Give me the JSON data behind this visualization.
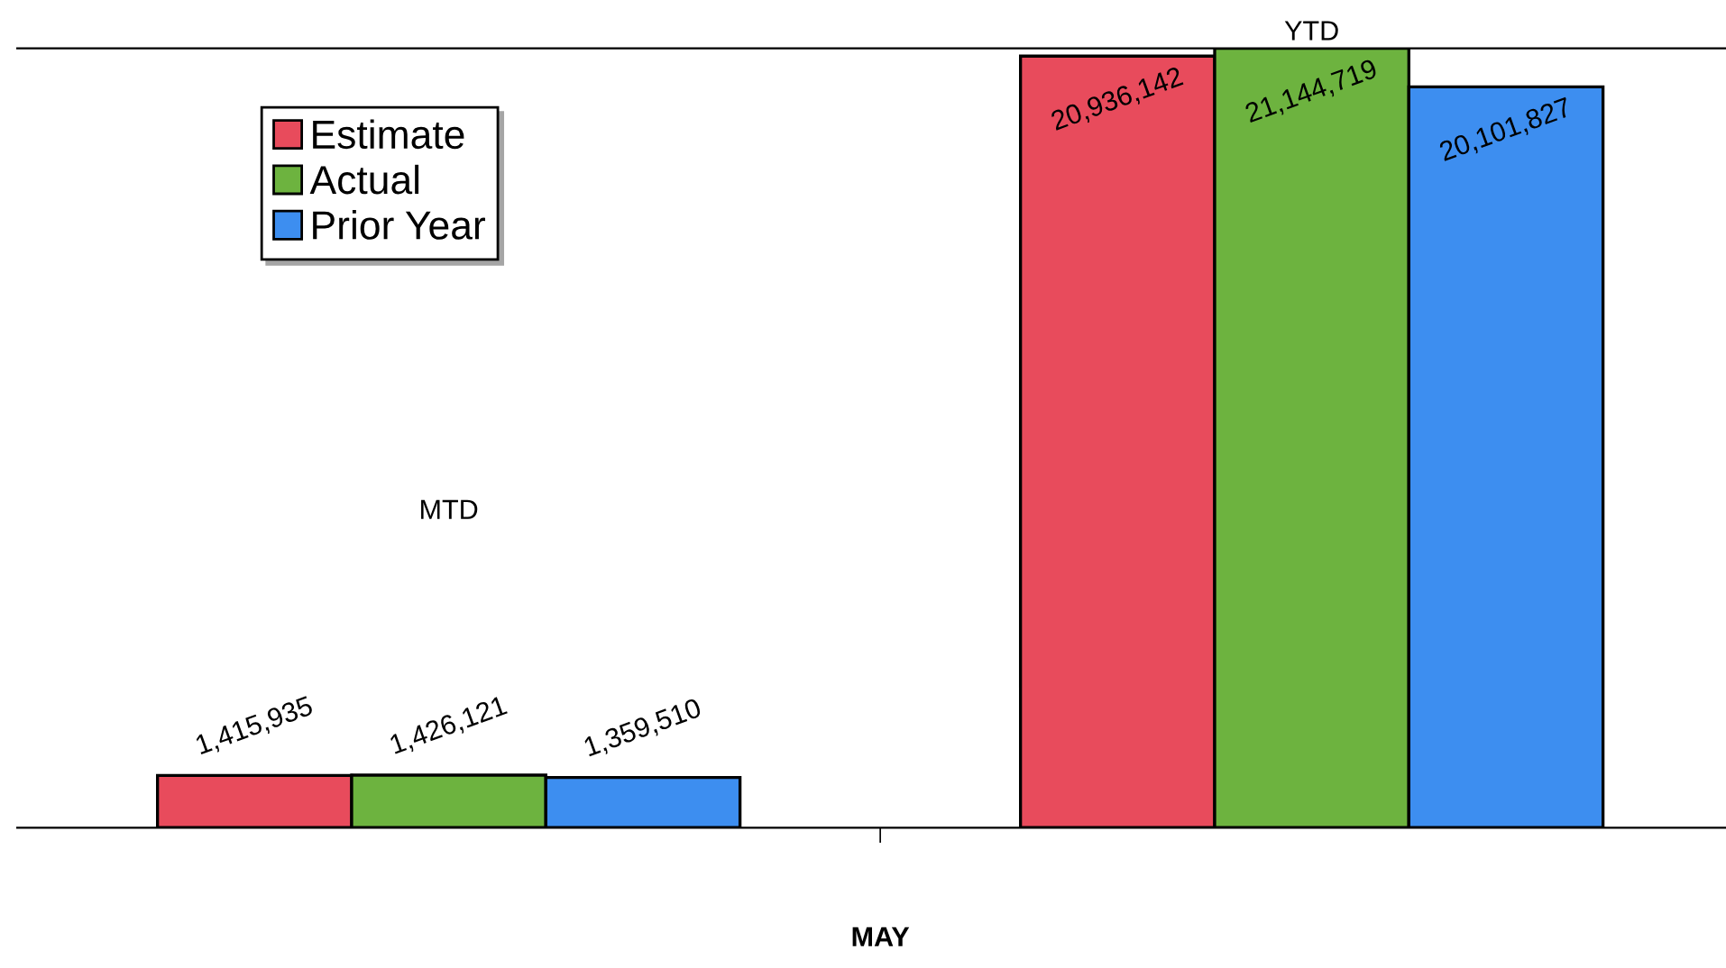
{
  "chart_data": {
    "type": "bar",
    "xlabel": "MAY",
    "categories": [
      "MTD",
      "YTD"
    ],
    "series": [
      {
        "name": "Estimate",
        "color": "#e84b5c",
        "values": [
          1415935,
          20936142
        ],
        "value_labels": [
          "1,415,935",
          "20,936,142"
        ]
      },
      {
        "name": "Actual",
        "color": "#6db33f",
        "values": [
          1426121,
          21144719
        ],
        "value_labels": [
          "1,426,121",
          "21,144,719"
        ]
      },
      {
        "name": "Prior Year",
        "color": "#3d8ef0",
        "values": [
          1359510,
          20101827
        ],
        "value_labels": [
          "1,359,510",
          "20,101,827"
        ]
      }
    ],
    "legend": "top left"
  }
}
